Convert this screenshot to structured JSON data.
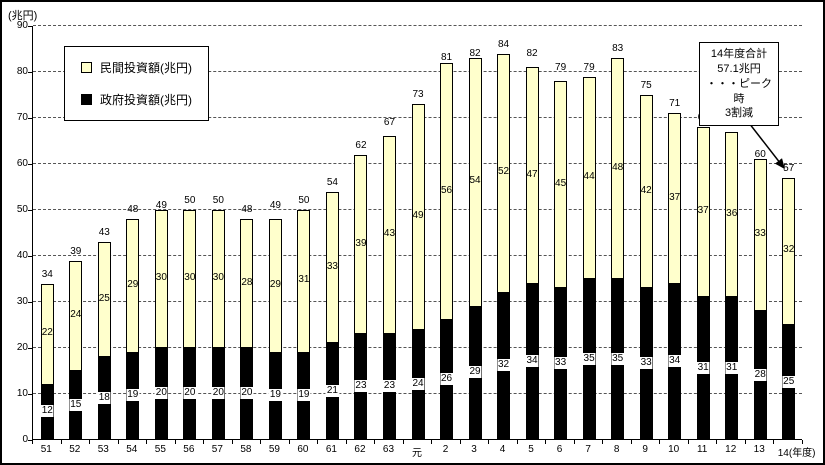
{
  "chart": {
    "unit_label": "(兆円)",
    "x_axis_suffix": "(年度)",
    "legend": {
      "private": "民間投資額(兆円)",
      "government": "政府投資額(兆円)"
    }
  },
  "annotation": {
    "lines": [
      "14年度合計",
      "57.1兆円",
      "・・・ピーク時",
      "3割減"
    ]
  },
  "chart_data": {
    "type": "bar",
    "stacked": true,
    "title": "",
    "xlabel": "(年度)",
    "ylabel": "(兆円)",
    "ylim": [
      0,
      90
    ],
    "ytick_interval": 10,
    "grid": "dashed-horizontal",
    "legend_position": "top-left",
    "categories": [
      "51",
      "52",
      "53",
      "54",
      "55",
      "56",
      "57",
      "58",
      "59",
      "60",
      "61",
      "62",
      "63",
      "元",
      "2",
      "3",
      "4",
      "5",
      "6",
      "7",
      "8",
      "9",
      "10",
      "11",
      "12",
      "13",
      "14"
    ],
    "series": [
      {
        "name": "政府投資額(兆円)",
        "color": "#000000",
        "values": [
          12,
          15,
          18,
          19,
          20,
          20,
          20,
          20,
          19,
          19,
          21,
          23,
          23,
          24,
          26,
          29,
          32,
          34,
          33,
          35,
          35,
          33,
          34,
          31,
          31,
          28,
          25
        ]
      },
      {
        "name": "民間投資額(兆円)",
        "color": "#FFFFCC",
        "values": [
          22,
          24,
          25,
          29,
          30,
          30,
          30,
          28,
          29,
          31,
          33,
          39,
          43,
          49,
          56,
          54,
          52,
          47,
          45,
          44,
          48,
          42,
          37,
          37,
          36,
          33,
          32
        ]
      }
    ],
    "totals": [
      34,
      39,
      43,
      48,
      49,
      50,
      50,
      48,
      49,
      50,
      54,
      62,
      67,
      73,
      81,
      82,
      84,
      82,
      79,
      79,
      83,
      75,
      71,
      68,
      67,
      60,
      57
    ],
    "annotations": [
      "14年度合計 57.1兆円 ・・・ピーク時3割減"
    ]
  }
}
